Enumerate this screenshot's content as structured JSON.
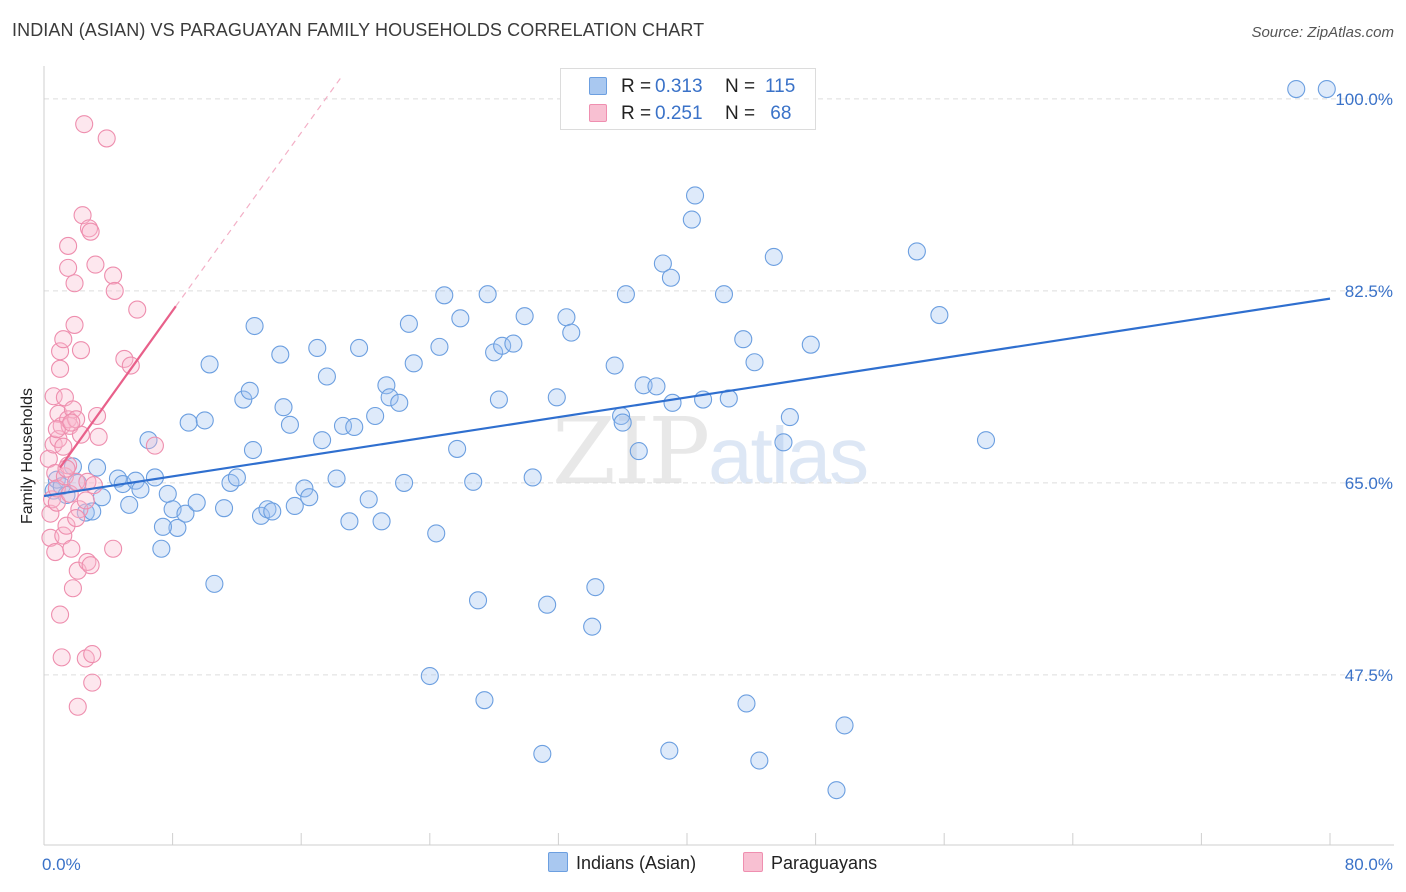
{
  "header": {
    "title": "INDIAN (ASIAN) VS PARAGUAYAN FAMILY HOUSEHOLDS CORRELATION CHART",
    "source": "Source: ZipAtlas.com"
  },
  "legend": {
    "rows": [
      {
        "r_label": "R =",
        "r_value": "0.313",
        "n_label": "N =",
        "n_value": "115",
        "color": "#a9c8f0",
        "border": "#6c9fe0"
      },
      {
        "r_label": "R =",
        "r_value": "0.251",
        "n_label": "N =",
        "n_value": " 68",
        "color": "#f8c0d2",
        "border": "#ef8fb0"
      }
    ],
    "bottom": [
      {
        "label": "Indians (Asian)",
        "color": "#a9c8f0",
        "border": "#6c9fe0"
      },
      {
        "label": "Paraguayans",
        "color": "#f8c0d2",
        "border": "#ef8fb0"
      }
    ]
  },
  "watermark": {
    "zip": "ZIP",
    "atlas": "atlas"
  },
  "colors": {
    "blue_fill": "rgba(160,196,240,0.35)",
    "blue_stroke": "#6c9fe0",
    "blue_line": "#2f6fcf",
    "pink_fill": "rgba(248,186,206,0.35)",
    "pink_stroke": "#ee8eae",
    "pink_line": "#e8608a",
    "grid": "#dddddd",
    "tick_label": "#3a72c8"
  },
  "chart_data": {
    "type": "scatter",
    "title": "INDIAN (ASIAN) VS PARAGUAYAN FAMILY HOUSEHOLDS CORRELATION CHART",
    "xlabel": "",
    "ylabel": "Family Households",
    "xlim": [
      0,
      80
    ],
    "ylim": [
      32,
      103
    ],
    "x_tick_labels": [
      {
        "value": 0,
        "label": "0.0%"
      },
      {
        "value": 80,
        "label": "80.0%"
      }
    ],
    "y_tick_labels": [
      {
        "value": 100,
        "label": "100.0%"
      },
      {
        "value": 82.5,
        "label": "82.5%"
      },
      {
        "value": 65,
        "label": "65.0%"
      },
      {
        "value": 47.5,
        "label": "47.5%"
      }
    ],
    "x_minor_ticks": [
      0,
      8,
      16,
      24,
      32,
      40,
      48,
      56,
      64,
      72,
      80
    ],
    "grid": true,
    "series": [
      {
        "name": "Indians (Asian)",
        "r": 0.313,
        "n": 115,
        "trend": {
          "x": [
            0,
            80
          ],
          "y": [
            63.8,
            81.8
          ],
          "style": "solid"
        },
        "points": [
          [
            0.6,
            64.3
          ],
          [
            0.8,
            65.3
          ],
          [
            1.1,
            64.7
          ],
          [
            1.4,
            63.9
          ],
          [
            1.8,
            66.5
          ],
          [
            2.1,
            65.0
          ],
          [
            2.6,
            62.3
          ],
          [
            3.0,
            62.4
          ],
          [
            3.3,
            66.4
          ],
          [
            3.6,
            63.7
          ],
          [
            4.6,
            65.4
          ],
          [
            4.9,
            64.9
          ],
          [
            5.3,
            63.0
          ],
          [
            5.7,
            65.2
          ],
          [
            6.0,
            64.4
          ],
          [
            6.5,
            68.9
          ],
          [
            6.9,
            65.5
          ],
          [
            7.3,
            59.0
          ],
          [
            7.7,
            64.0
          ],
          [
            8.0,
            62.6
          ],
          [
            8.3,
            60.9
          ],
          [
            8.8,
            62.2
          ],
          [
            9.0,
            70.5
          ],
          [
            9.5,
            63.2
          ],
          [
            10.0,
            70.7
          ],
          [
            10.3,
            75.8
          ],
          [
            10.6,
            55.8
          ],
          [
            11.2,
            62.7
          ],
          [
            11.6,
            65.0
          ],
          [
            12.0,
            65.5
          ],
          [
            12.4,
            72.6
          ],
          [
            12.8,
            73.4
          ],
          [
            13.1,
            79.3
          ],
          [
            13.5,
            62.0
          ],
          [
            13.9,
            62.6
          ],
          [
            14.2,
            62.4
          ],
          [
            14.7,
            76.7
          ],
          [
            14.9,
            71.9
          ],
          [
            15.3,
            70.3
          ],
          [
            15.6,
            62.9
          ],
          [
            16.2,
            64.5
          ],
          [
            16.5,
            63.7
          ],
          [
            17.0,
            77.3
          ],
          [
            17.3,
            68.9
          ],
          [
            17.6,
            74.7
          ],
          [
            18.2,
            65.4
          ],
          [
            18.6,
            70.2
          ],
          [
            19.0,
            61.5
          ],
          [
            19.3,
            70.1
          ],
          [
            19.6,
            77.3
          ],
          [
            20.2,
            63.5
          ],
          [
            20.6,
            71.1
          ],
          [
            21.0,
            61.5
          ],
          [
            21.3,
            73.9
          ],
          [
            21.5,
            72.8
          ],
          [
            22.1,
            72.3
          ],
          [
            22.4,
            65.0
          ],
          [
            22.7,
            79.5
          ],
          [
            23.0,
            75.9
          ],
          [
            24.0,
            47.4
          ],
          [
            24.4,
            60.4
          ],
          [
            24.6,
            77.4
          ],
          [
            24.9,
            82.1
          ],
          [
            25.7,
            68.1
          ],
          [
            25.9,
            80.0
          ],
          [
            26.7,
            65.1
          ],
          [
            27.0,
            54.3
          ],
          [
            27.4,
            45.2
          ],
          [
            27.6,
            82.2
          ],
          [
            28.0,
            76.9
          ],
          [
            28.3,
            72.6
          ],
          [
            28.5,
            77.5
          ],
          [
            29.2,
            77.7
          ],
          [
            29.9,
            80.2
          ],
          [
            30.4,
            65.5
          ],
          [
            31.0,
            40.3
          ],
          [
            31.3,
            53.9
          ],
          [
            31.9,
            72.8
          ],
          [
            32.5,
            80.1
          ],
          [
            32.8,
            78.7
          ],
          [
            34.1,
            51.9
          ],
          [
            34.3,
            55.5
          ],
          [
            35.5,
            75.7
          ],
          [
            35.9,
            71.1
          ],
          [
            36.2,
            82.2
          ],
          [
            37.0,
            67.9
          ],
          [
            37.3,
            73.9
          ],
          [
            38.1,
            73.8
          ],
          [
            38.5,
            85.0
          ],
          [
            38.9,
            40.6
          ],
          [
            39.0,
            83.7
          ],
          [
            39.1,
            72.3
          ],
          [
            40.3,
            89.0
          ],
          [
            40.5,
            91.2
          ],
          [
            41.0,
            72.6
          ],
          [
            42.3,
            82.2
          ],
          [
            42.6,
            72.7
          ],
          [
            43.5,
            78.1
          ],
          [
            43.7,
            44.9
          ],
          [
            44.2,
            76.0
          ],
          [
            44.5,
            39.7
          ],
          [
            45.4,
            85.6
          ],
          [
            46.0,
            68.7
          ],
          [
            46.4,
            71.0
          ],
          [
            47.7,
            77.6
          ],
          [
            49.3,
            37.0
          ],
          [
            49.8,
            42.9
          ],
          [
            54.3,
            86.1
          ],
          [
            55.7,
            80.3
          ],
          [
            58.6,
            68.9
          ],
          [
            77.9,
            100.9
          ],
          [
            79.8,
            100.9
          ],
          [
            7.4,
            61.0
          ],
          [
            13.0,
            68.0
          ],
          [
            36.0,
            70.5
          ]
        ]
      },
      {
        "name": "Paraguayans",
        "r": 0.251,
        "n": 68,
        "trend": {
          "x": [
            1.0,
            8.2
          ],
          "y": [
            66.4,
            81.1
          ],
          "style": "solid"
        },
        "trend_extension": {
          "x": [
            8.2,
            18.5
          ],
          "y": [
            81.1,
            102.0
          ],
          "style": "dashed"
        },
        "points": [
          [
            0.3,
            67.2
          ],
          [
            0.4,
            62.2
          ],
          [
            0.4,
            60.0
          ],
          [
            0.5,
            63.5
          ],
          [
            0.6,
            68.5
          ],
          [
            0.6,
            72.9
          ],
          [
            0.7,
            58.7
          ],
          [
            0.7,
            65.9
          ],
          [
            0.8,
            64.5
          ],
          [
            0.8,
            63.2
          ],
          [
            0.9,
            71.3
          ],
          [
            0.9,
            69.0
          ],
          [
            1.0,
            77.0
          ],
          [
            1.0,
            75.4
          ],
          [
            1.0,
            53.0
          ],
          [
            1.1,
            70.2
          ],
          [
            1.1,
            49.1
          ],
          [
            1.2,
            78.1
          ],
          [
            1.2,
            68.3
          ],
          [
            1.2,
            60.2
          ],
          [
            1.3,
            72.8
          ],
          [
            1.3,
            65.6
          ],
          [
            1.4,
            61.1
          ],
          [
            1.5,
            86.6
          ],
          [
            1.5,
            84.6
          ],
          [
            1.5,
            70.8
          ],
          [
            1.5,
            66.6
          ],
          [
            1.6,
            70.2
          ],
          [
            1.6,
            64.0
          ],
          [
            1.7,
            59.0
          ],
          [
            1.8,
            71.7
          ],
          [
            1.8,
            55.4
          ],
          [
            1.9,
            83.2
          ],
          [
            1.9,
            79.4
          ],
          [
            2.0,
            70.8
          ],
          [
            2.0,
            65.1
          ],
          [
            2.1,
            44.6
          ],
          [
            2.1,
            57.0
          ],
          [
            2.2,
            62.6
          ],
          [
            2.3,
            77.1
          ],
          [
            2.3,
            69.4
          ],
          [
            2.4,
            89.4
          ],
          [
            2.5,
            97.7
          ],
          [
            2.6,
            49.0
          ],
          [
            2.7,
            65.1
          ],
          [
            2.7,
            57.8
          ],
          [
            2.8,
            88.2
          ],
          [
            2.9,
            87.9
          ],
          [
            2.9,
            57.5
          ],
          [
            3.0,
            46.8
          ],
          [
            3.0,
            49.4
          ],
          [
            3.1,
            64.8
          ],
          [
            3.2,
            84.9
          ],
          [
            3.3,
            71.1
          ],
          [
            3.4,
            69.2
          ],
          [
            3.9,
            96.4
          ],
          [
            4.3,
            59.0
          ],
          [
            4.3,
            83.9
          ],
          [
            4.4,
            82.5
          ],
          [
            5.0,
            76.3
          ],
          [
            5.4,
            75.7
          ],
          [
            5.8,
            80.8
          ],
          [
            6.9,
            68.4
          ],
          [
            1.4,
            66.3
          ],
          [
            2.0,
            61.8
          ],
          [
            0.8,
            69.9
          ],
          [
            1.7,
            70.5
          ],
          [
            2.6,
            63.4
          ]
        ]
      }
    ]
  }
}
